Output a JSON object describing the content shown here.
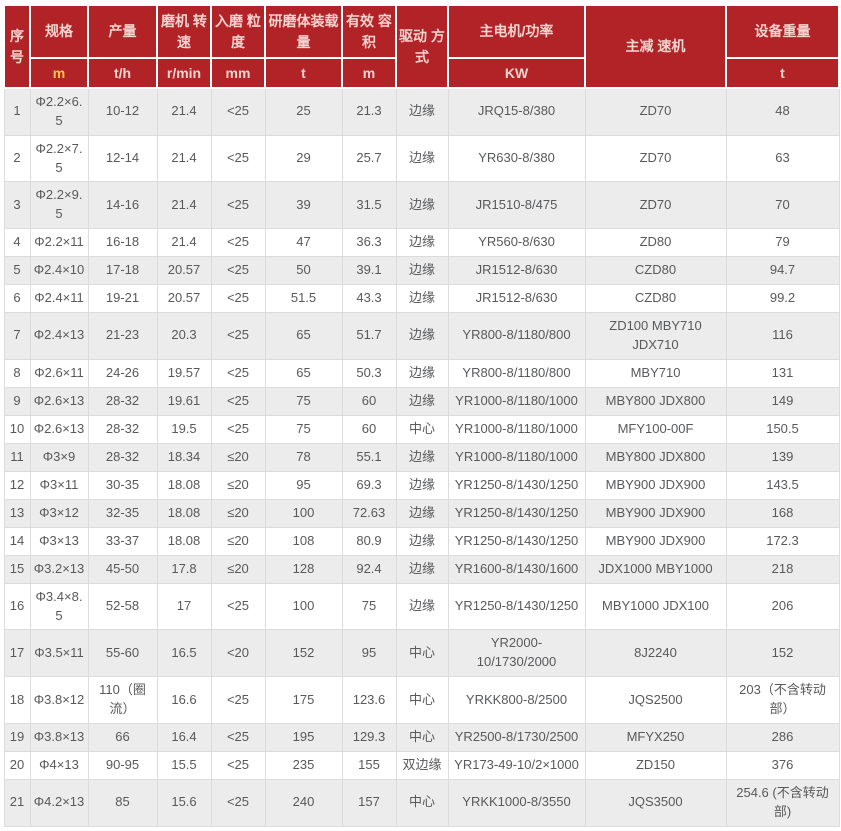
{
  "colors": {
    "header_bg": "#b22328",
    "header_text": "#f3d4ce",
    "unit_highlight": "#ffc44d",
    "row_alt_bg": "#ececec",
    "row_bg": "#ffffff",
    "body_text": "#58595b",
    "border": "#dcdcdc"
  },
  "table": {
    "columns": [
      {
        "key": "index",
        "label": "序号",
        "unit": ""
      },
      {
        "key": "spec",
        "label": "规格",
        "unit": "m"
      },
      {
        "key": "output",
        "label": "产量",
        "unit": "t/h"
      },
      {
        "key": "speed",
        "label": "磨机 转速",
        "unit": "r/min"
      },
      {
        "key": "feed",
        "label": "入磨 粒度",
        "unit": "mm"
      },
      {
        "key": "media",
        "label": "研磨体装载量",
        "unit": "t"
      },
      {
        "key": "volume",
        "label": "有效 容积",
        "unit": "m"
      },
      {
        "key": "drive",
        "label": "驱动 方式",
        "unit": ""
      },
      {
        "key": "motor",
        "label": "主电机/功率",
        "unit": "KW"
      },
      {
        "key": "reducer",
        "label": "主减 速机",
        "unit": ""
      },
      {
        "key": "weight",
        "label": "设备重量",
        "unit": "t"
      }
    ],
    "rows": [
      [
        "1",
        "Φ2.2×6.5",
        "10-12",
        "21.4",
        "<25",
        "25",
        "21.3",
        "边缘",
        "JRQ15-8/380",
        "ZD70",
        "48"
      ],
      [
        "2",
        "Φ2.2×7.5",
        "12-14",
        "21.4",
        "<25",
        "29",
        "25.7",
        "边缘",
        "YR630-8/380",
        "ZD70",
        "63"
      ],
      [
        "3",
        "Φ2.2×9.5",
        "14-16",
        "21.4",
        "<25",
        "39",
        "31.5",
        "边缘",
        "JR1510-8/475",
        "ZD70",
        "70"
      ],
      [
        "4",
        "Φ2.2×11",
        "16-18",
        "21.4",
        "<25",
        "47",
        "36.3",
        "边缘",
        "YR560-8/630",
        "ZD80",
        "79"
      ],
      [
        "5",
        "Φ2.4×10",
        "17-18",
        "20.57",
        "<25",
        "50",
        "39.1",
        "边缘",
        "JR1512-8/630",
        "CZD80",
        "94.7"
      ],
      [
        "6",
        "Φ2.4×11",
        "19-21",
        "20.57",
        "<25",
        "51.5",
        "43.3",
        "边缘",
        "JR1512-8/630",
        "CZD80",
        "99.2"
      ],
      [
        "7",
        "Φ2.4×13",
        "21-23",
        "20.3",
        "<25",
        "65",
        "51.7",
        "边缘",
        "YR800-8/1180/800",
        "ZD100 MBY710 JDX710",
        "116"
      ],
      [
        "8",
        "Φ2.6×11",
        "24-26",
        "19.57",
        "<25",
        "65",
        "50.3",
        "边缘",
        "YR800-8/1180/800",
        "MBY710",
        "131"
      ],
      [
        "9",
        "Φ2.6×13",
        "28-32",
        "19.61",
        "<25",
        "75",
        "60",
        "边缘",
        "YR1000-8/1180/1000",
        "MBY800 JDX800",
        "149"
      ],
      [
        "10",
        "Φ2.6×13",
        "28-32",
        "19.5",
        "<25",
        "75",
        "60",
        "中心",
        "YR1000-8/1180/1000",
        "MFY100-00F",
        "150.5"
      ],
      [
        "11",
        "Φ3×9",
        "28-32",
        "18.34",
        "≤20",
        "78",
        "55.1",
        "边缘",
        "YR1000-8/1180/1000",
        "MBY800 JDX800",
        "139"
      ],
      [
        "12",
        "Φ3×11",
        "30-35",
        "18.08",
        "≤20",
        "95",
        "69.3",
        "边缘",
        "YR1250-8/1430/1250",
        "MBY900 JDX900",
        "143.5"
      ],
      [
        "13",
        "Φ3×12",
        "32-35",
        "18.08",
        "≤20",
        "100",
        "72.63",
        "边缘",
        "YR1250-8/1430/1250",
        "MBY900 JDX900",
        "168"
      ],
      [
        "14",
        "Φ3×13",
        "33-37",
        "18.08",
        "≤20",
        "108",
        "80.9",
        "边缘",
        "YR1250-8/1430/1250",
        "MBY900 JDX900",
        "172.3"
      ],
      [
        "15",
        "Φ3.2×13",
        "45-50",
        "17.8",
        "≤20",
        "128",
        "92.4",
        "边缘",
        "YR1600-8/1430/1600",
        "JDX1000 MBY1000",
        "218"
      ],
      [
        "16",
        "Φ3.4×8.5",
        "52-58",
        "17",
        "<25",
        "100",
        "75",
        "边缘",
        "YR1250-8/1430/1250",
        "MBY1000 JDX100",
        "206"
      ],
      [
        "17",
        "Φ3.5×11",
        "55-60",
        "16.5",
        "<20",
        "152",
        "95",
        "中心",
        "YR2000-10/1730/2000",
        "8J2240",
        "152"
      ],
      [
        "18",
        "Φ3.8×12",
        "110（圈流）",
        "16.6",
        "<25",
        "175",
        "123.6",
        "中心",
        "YRKK800-8/2500",
        "JQS2500",
        "203（不含转动部）"
      ],
      [
        "19",
        "Φ3.8×13",
        "66",
        "16.4",
        "<25",
        "195",
        "129.3",
        "中心",
        "YR2500-8/1730/2500",
        "MFYX250",
        "286"
      ],
      [
        "20",
        "Φ4×13",
        "90-95",
        "15.5",
        "<25",
        "235",
        "155",
        "双边缘",
        "YR173-49-10/2×1000",
        "ZD150",
        "376"
      ],
      [
        "21",
        "Φ4.2×13",
        "85",
        "15.6",
        "<25",
        "240",
        "157",
        "中心",
        "YRKK1000-8/3550",
        "JQS3500",
        "254.6 (不含转动部)"
      ]
    ]
  }
}
